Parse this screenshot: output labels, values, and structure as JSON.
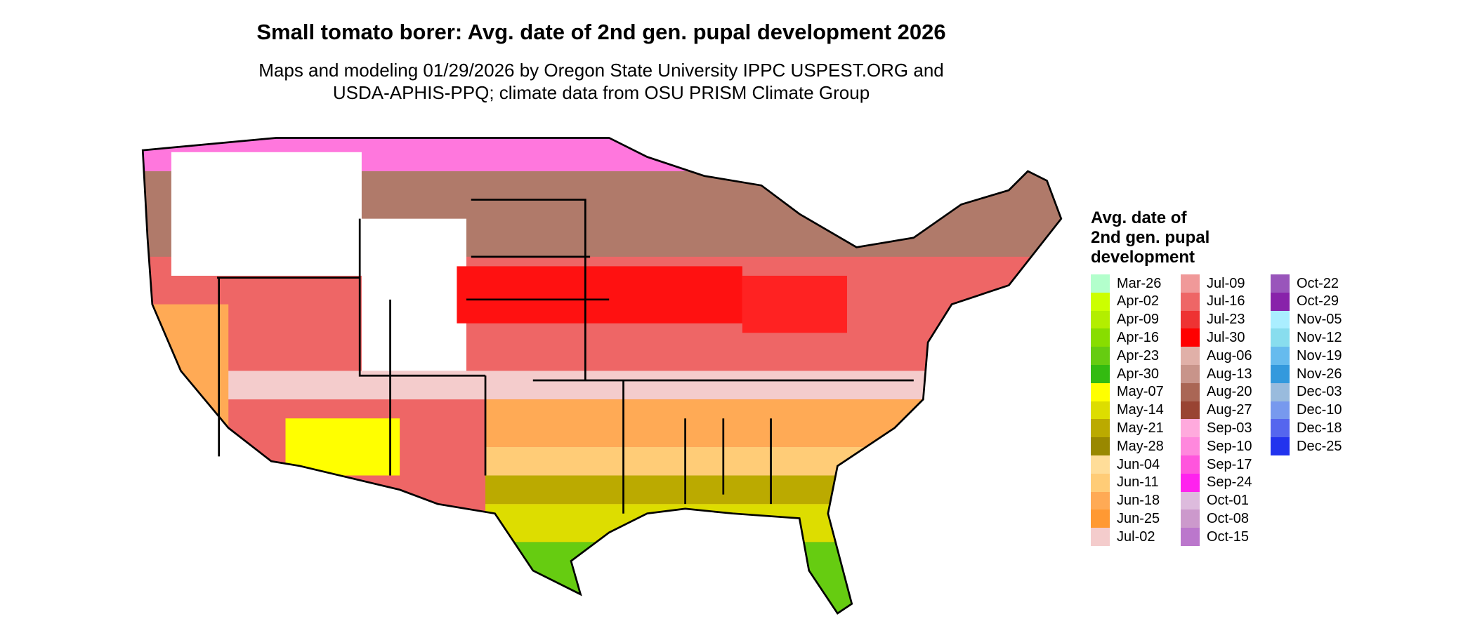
{
  "title": "Small tomato borer: Avg. date of 2nd gen. pupal development 2026",
  "subtitle": [
    "Maps and modeling 01/29/2026 by Oregon State University IPPC USPEST.ORG and",
    "USDA-APHIS-PPQ; climate data from OSU PRISM Climate Group"
  ],
  "legend": {
    "title": [
      "Avg. date of",
      "2nd gen. pupal",
      "development"
    ],
    "items": [
      {
        "label": "Mar-26",
        "color": "#b3ffcc"
      },
      {
        "label": "Apr-02",
        "color": "#ccff00"
      },
      {
        "label": "Apr-09",
        "color": "#b3ee00"
      },
      {
        "label": "Apr-16",
        "color": "#88dd00"
      },
      {
        "label": "Apr-23",
        "color": "#66cc11"
      },
      {
        "label": "Apr-30",
        "color": "#33bb11"
      },
      {
        "label": "May-07",
        "color": "#ffff00"
      },
      {
        "label": "May-14",
        "color": "#dddd00"
      },
      {
        "label": "May-21",
        "color": "#bbaa00"
      },
      {
        "label": "May-28",
        "color": "#998800"
      },
      {
        "label": "Jun-04",
        "color": "#ffdd99"
      },
      {
        "label": "Jun-11",
        "color": "#ffcc77"
      },
      {
        "label": "Jun-18",
        "color": "#ffaa55"
      },
      {
        "label": "Jun-25",
        "color": "#ff9933"
      },
      {
        "label": "Jul-02",
        "color": "#f4cccc"
      },
      {
        "label": "Jul-09",
        "color": "#f09999"
      },
      {
        "label": "Jul-16",
        "color": "#ee6666"
      },
      {
        "label": "Jul-23",
        "color": "#ee3333"
      },
      {
        "label": "Jul-30",
        "color": "#ff0000"
      },
      {
        "label": "Aug-06",
        "color": "#e0b0a8"
      },
      {
        "label": "Aug-13",
        "color": "#c8948a"
      },
      {
        "label": "Aug-20",
        "color": "#aa6655"
      },
      {
        "label": "Aug-27",
        "color": "#994433"
      },
      {
        "label": "Sep-03",
        "color": "#ffaadd"
      },
      {
        "label": "Sep-10",
        "color": "#ff88dd"
      },
      {
        "label": "Sep-17",
        "color": "#ff55dd"
      },
      {
        "label": "Sep-24",
        "color": "#ff22ee"
      },
      {
        "label": "Oct-01",
        "color": "#ddbbdd"
      },
      {
        "label": "Oct-08",
        "color": "#cc99cc"
      },
      {
        "label": "Oct-15",
        "color": "#bb77cc"
      },
      {
        "label": "Oct-22",
        "color": "#9955bb"
      },
      {
        "label": "Oct-29",
        "color": "#8822aa"
      },
      {
        "label": "Nov-05",
        "color": "#aaeeff"
      },
      {
        "label": "Nov-12",
        "color": "#88ddee"
      },
      {
        "label": "Nov-19",
        "color": "#66bbee"
      },
      {
        "label": "Nov-26",
        "color": "#3399dd"
      },
      {
        "label": "Dec-03",
        "color": "#99bbdd"
      },
      {
        "label": "Dec-10",
        "color": "#7799ee"
      },
      {
        "label": "Dec-18",
        "color": "#5566ee"
      },
      {
        "label": "Dec-25",
        "color": "#2233ee"
      }
    ]
  }
}
